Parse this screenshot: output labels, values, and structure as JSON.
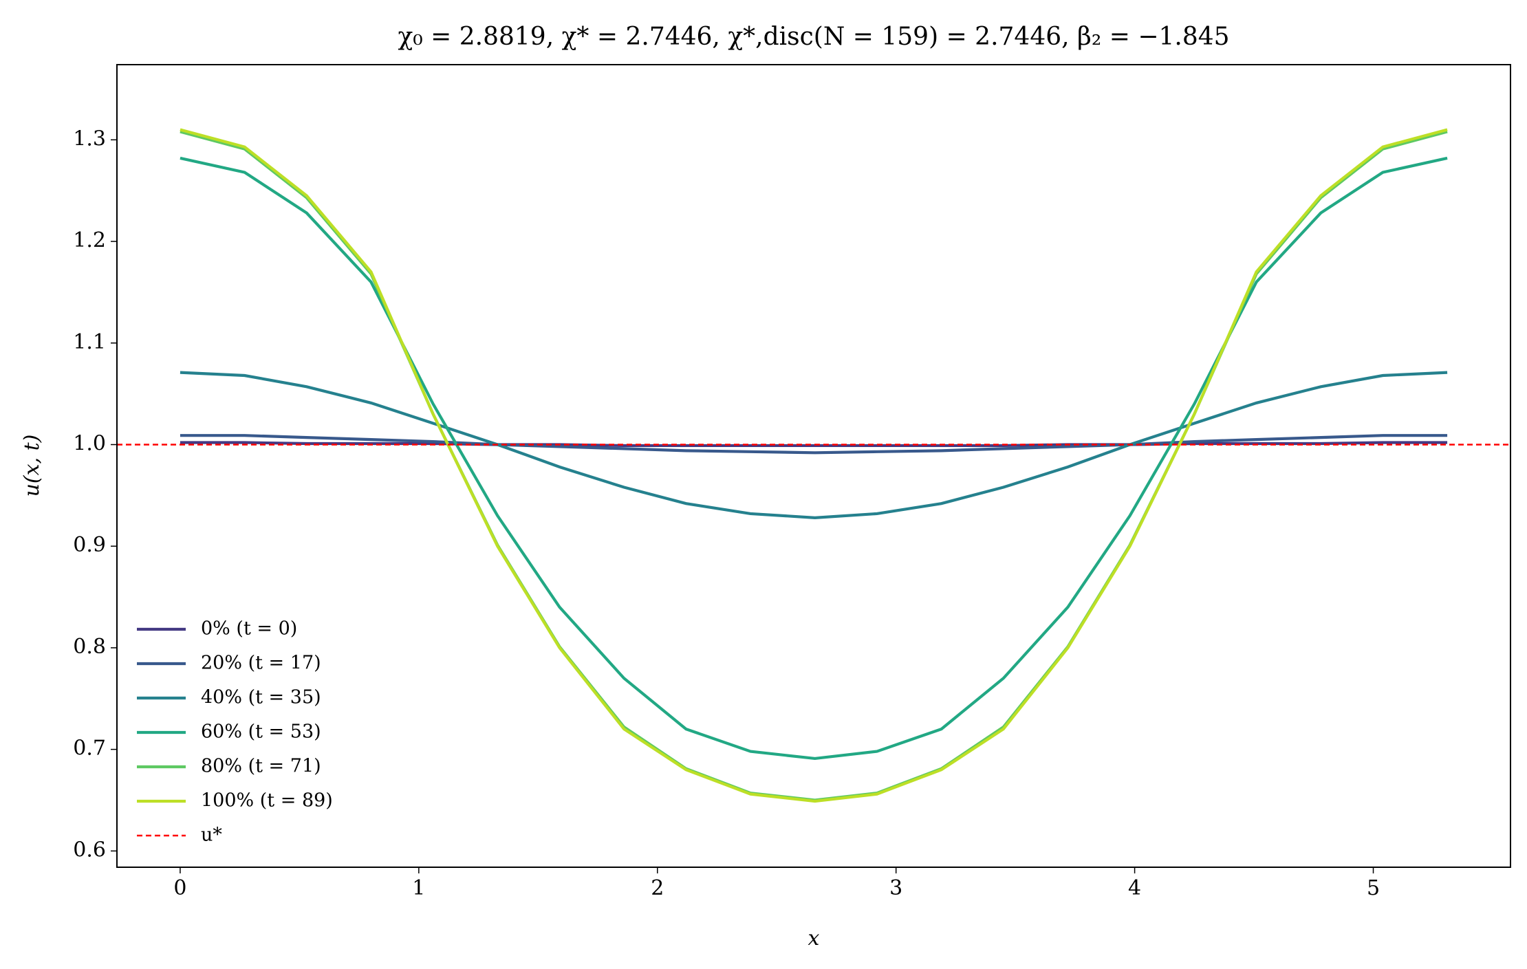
{
  "chart_data": {
    "type": "line",
    "title": "χ₀ = 2.8819,  χ* = 2.7446,  χ*,disc(N = 159) = 2.7446,  β₂ = −1.845",
    "xlabel": "x",
    "ylabel": "u(x, t)",
    "x": [
      0,
      0.27,
      0.53,
      0.8,
      1.06,
      1.33,
      1.59,
      1.86,
      2.12,
      2.39,
      2.66,
      2.92,
      3.19,
      3.45,
      3.72,
      3.98,
      4.25,
      4.51,
      4.78,
      5.04,
      5.31
    ],
    "series": [
      {
        "name": "0% (t = 0)",
        "color": "#443a83",
        "values": [
          1.002,
          1.002,
          1.001,
          1.001,
          1.001,
          1.0,
          1.0,
          0.999,
          0.999,
          0.999,
          0.999,
          0.999,
          0.999,
          0.999,
          1.0,
          1.0,
          1.001,
          1.001,
          1.001,
          1.002,
          1.002
        ]
      },
      {
        "name": "20% (t = 17)",
        "color": "#38598c",
        "values": [
          1.009,
          1.009,
          1.007,
          1.005,
          1.003,
          1.0,
          0.998,
          0.996,
          0.994,
          0.993,
          0.992,
          0.993,
          0.994,
          0.996,
          0.998,
          1.0,
          1.003,
          1.005,
          1.007,
          1.009,
          1.009
        ]
      },
      {
        "name": "40% (t = 35)",
        "color": "#25818e",
        "values": [
          1.071,
          1.068,
          1.057,
          1.041,
          1.021,
          1.0,
          0.978,
          0.958,
          0.942,
          0.932,
          0.928,
          0.932,
          0.942,
          0.958,
          0.978,
          1.0,
          1.021,
          1.041,
          1.057,
          1.068,
          1.071
        ]
      },
      {
        "name": "60% (t = 53)",
        "color": "#22a884",
        "values": [
          1.282,
          1.268,
          1.228,
          1.16,
          1.04,
          0.93,
          0.84,
          0.77,
          0.72,
          0.698,
          0.691,
          0.698,
          0.72,
          0.77,
          0.84,
          0.93,
          1.04,
          1.16,
          1.228,
          1.268,
          1.282
        ]
      },
      {
        "name": "80% (t = 71)",
        "color": "#5ec962",
        "values": [
          1.308,
          1.291,
          1.243,
          1.168,
          1.03,
          0.901,
          0.801,
          0.722,
          0.681,
          0.657,
          0.65,
          0.657,
          0.681,
          0.722,
          0.801,
          0.901,
          1.03,
          1.168,
          1.243,
          1.291,
          1.308
        ]
      },
      {
        "name": "100% (t = 89)",
        "color": "#bddf26",
        "values": [
          1.31,
          1.293,
          1.245,
          1.17,
          1.03,
          0.9,
          0.8,
          0.72,
          0.68,
          0.656,
          0.649,
          0.656,
          0.68,
          0.72,
          0.8,
          0.9,
          1.03,
          1.17,
          1.245,
          1.293,
          1.31
        ]
      }
    ],
    "hline": {
      "name": "u*",
      "value": 1.0,
      "color": "#ff0000"
    },
    "xlim": [
      -0.265,
      5.575
    ],
    "xticks": [
      0,
      1,
      2,
      3,
      4,
      5
    ],
    "ylim": [
      0.584,
      1.374
    ],
    "yticks": [
      0.6,
      0.7,
      0.8,
      0.9,
      {
        "value": 1,
        "label": "1.0"
      },
      1.1,
      1.2,
      1.3
    ],
    "legend": "lower left"
  }
}
